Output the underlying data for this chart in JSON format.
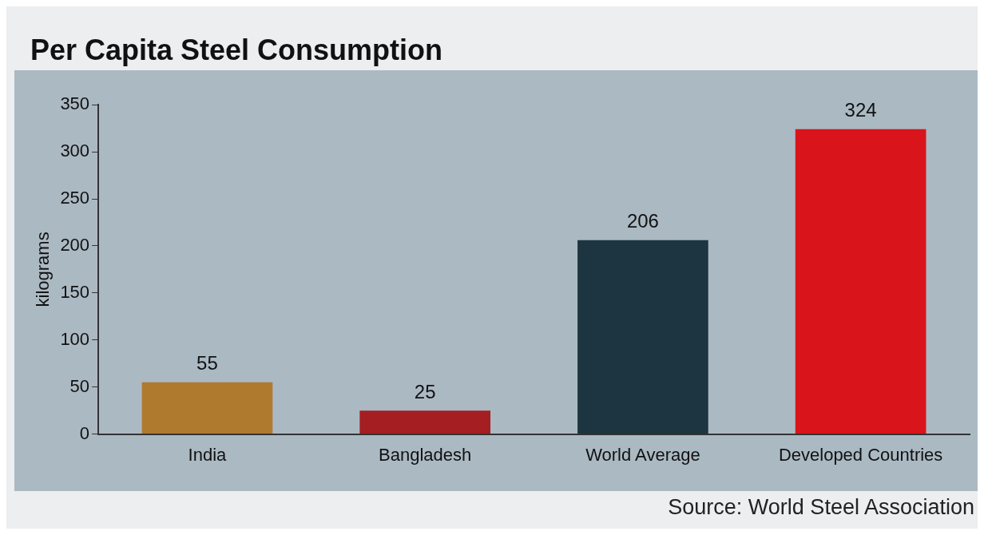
{
  "chart_data": {
    "type": "bar",
    "title": "Per Capita Steel Consumption",
    "ylabel": "kilograms",
    "categories": [
      "India",
      "Bangladesh",
      "World Average",
      "Developed Countries"
    ],
    "values": [
      55,
      25,
      206,
      324
    ],
    "colors": [
      "#b07a2e",
      "#a41e22",
      "#1c3540",
      "#d9141b"
    ],
    "ylim": [
      0,
      350
    ],
    "yticks": [
      0,
      50,
      100,
      150,
      200,
      250,
      300,
      350
    ],
    "grid": false,
    "legend": false,
    "data_labels": true,
    "annotations": [
      "Source: World Steel Association"
    ]
  }
}
